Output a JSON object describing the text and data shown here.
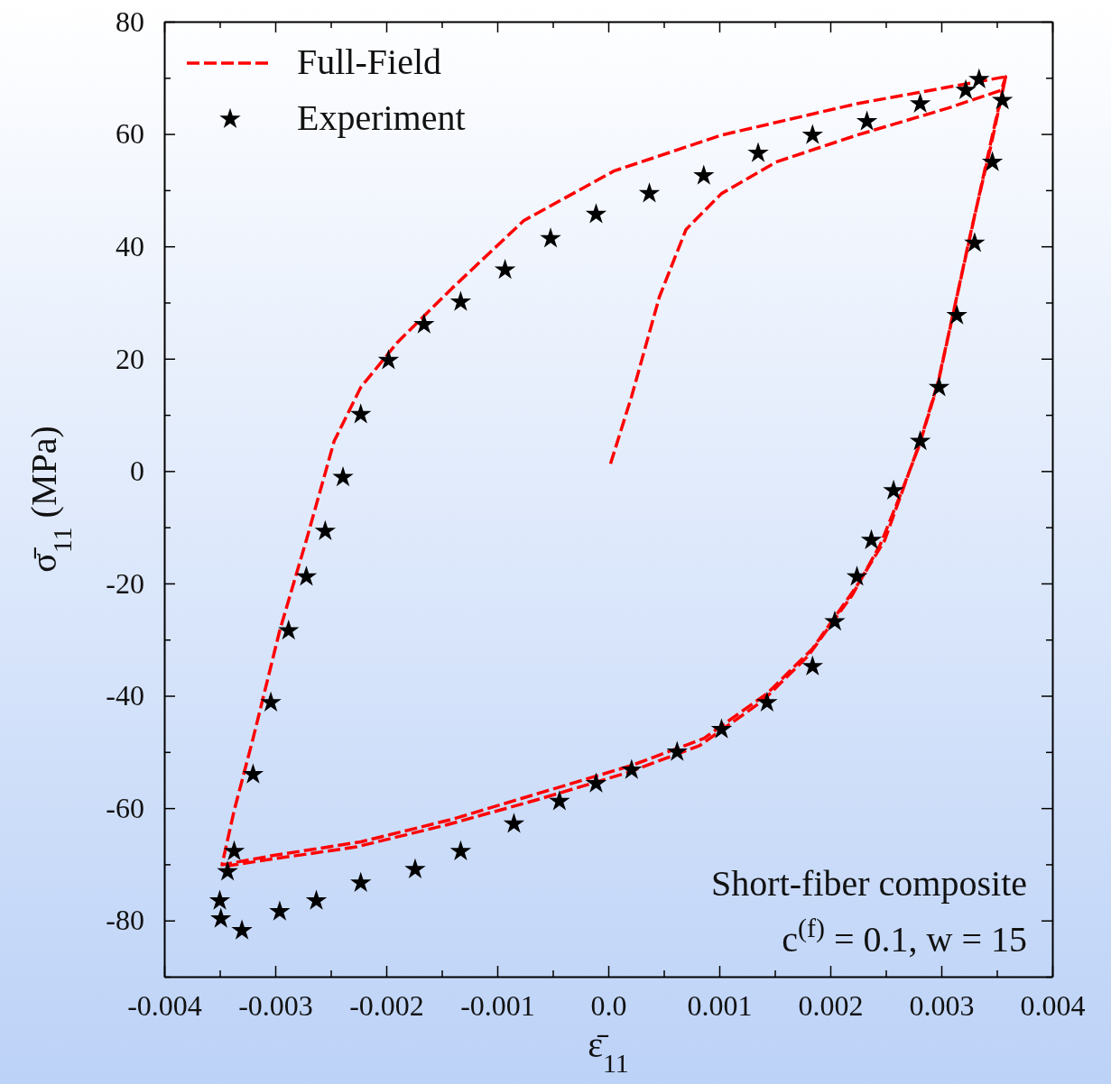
{
  "chart_data": {
    "type": "line",
    "xlabel": "ε̄$_{11}$",
    "ylabel": "σ̄$_{11}$ (MPa)",
    "xlim": [
      -0.004,
      0.004
    ],
    "ylim": [
      -90,
      80
    ],
    "xticks": [
      -0.004,
      {
        "value": -0.0035,
        "label": null
      },
      -0.003,
      {
        "value": -0.0025,
        "label": null
      },
      -0.002,
      {
        "value": -0.0015,
        "label": null
      },
      -0.001,
      {
        "value": -0.0005,
        "label": null
      },
      {
        "value": 0,
        "label": "0.0"
      },
      {
        "value": 0.0005,
        "label": null
      },
      0.001,
      {
        "value": 0.0015,
        "label": null
      },
      0.002,
      {
        "value": 0.0025,
        "label": null
      },
      0.003,
      {
        "value": 0.0035,
        "label": null
      },
      0.004
    ],
    "yticks": [
      {
        "value": -90,
        "label": null
      },
      -80,
      {
        "value": -70,
        "label": null
      },
      -60,
      {
        "value": -50,
        "label": null
      },
      -40,
      {
        "value": -30,
        "label": null
      },
      -20,
      {
        "value": -10,
        "label": null
      },
      0,
      {
        "value": 10,
        "label": null
      },
      20,
      {
        "value": 30,
        "label": null
      },
      40,
      {
        "value": 50,
        "label": null
      },
      60,
      {
        "value": 70,
        "label": null
      },
      80
    ],
    "grid": false,
    "legend": "top left",
    "annotations": [
      "Short-fiber composite",
      "c$^{(f)}$ = 0.1,  w = 15"
    ],
    "series": [
      {
        "name": "Full-Field",
        "color": "#ff0000",
        "line_style": "dashed",
        "marker": "none",
        "x": [
          2e-05,
          0.00021,
          0.00046,
          0.0007,
          0.00102,
          0.00151,
          0.00224,
          0.00306,
          0.00354,
          0.00358,
          0.00346,
          0.0033,
          0.00314,
          0.00298,
          0.00281,
          0.00265,
          0.00249,
          0.00224,
          0.00184,
          0.00143,
          0.00086,
          0.00021,
          -0.0006,
          -0.00141,
          -0.00223,
          -0.00304,
          -0.00348,
          -0.00337,
          -0.0032,
          -0.00296,
          -0.00272,
          -0.00247,
          -0.00223,
          -0.0019,
          -0.00141,
          -0.00076,
          5e-05,
          0.00102,
          0.00224,
          0.00358,
          0.00345,
          0.00328,
          0.00312,
          0.00296,
          0.0028,
          0.00263,
          0.00245,
          0.0022,
          0.0018,
          0.00139,
          0.00082,
          0.00017,
          -0.00064,
          -0.00146,
          -0.00227,
          -0.00304,
          -0.00348
        ],
        "values": [
          1.3,
          13.3,
          31,
          43,
          49.4,
          55,
          59.8,
          64.6,
          67.8,
          70.2,
          59.8,
          45.4,
          31,
          16.5,
          5.3,
          -3.5,
          -12.3,
          -20.4,
          -31.6,
          -39.6,
          -47.6,
          -52.4,
          -57.2,
          -62,
          -66,
          -68.5,
          -70.1,
          -60.4,
          -47.6,
          -28.4,
          -12.3,
          5.3,
          14.9,
          22.9,
          32.5,
          44.6,
          53.4,
          59.8,
          65.4,
          70.2,
          58.2,
          43.8,
          29.3,
          14.9,
          4.5,
          -4.3,
          -13.1,
          -22,
          -32.9,
          -40.9,
          -48.9,
          -53.7,
          -58.5,
          -63,
          -66.9,
          -69.1,
          -70.4
        ]
      },
      {
        "name": "Experiment",
        "type": "scatter",
        "color": "#000000",
        "marker": "star",
        "x": [
          0.00334,
          0.00355,
          0.00346,
          0.0033,
          0.00314,
          0.00298,
          0.00281,
          0.00257,
          0.00237,
          0.00224,
          0.00204,
          0.00184,
          0.00143,
          0.00102,
          0.00062,
          0.00021,
          -0.00011,
          -0.00044,
          -0.00085,
          -0.00133,
          -0.00174,
          -0.00223,
          -0.00263,
          -0.00296,
          -0.0033,
          -0.00349,
          -0.0035,
          -0.00343,
          -0.00337,
          -0.0032,
          -0.00304,
          -0.00288,
          -0.00272,
          -0.00255,
          -0.00239,
          -0.00223,
          -0.00198,
          -0.00166,
          -0.00133,
          -0.00093,
          -0.00052,
          -0.00011,
          0.00037,
          0.00086,
          0.00135,
          0.00184,
          0.00233,
          0.00281,
          0.00322
        ],
        "values": [
          69.7,
          66,
          55,
          40.6,
          27.7,
          14.9,
          5.3,
          -3.5,
          -12.3,
          -18.8,
          -26.8,
          -34.8,
          -41.2,
          -46,
          -50,
          -53.2,
          -55.6,
          -58.8,
          -62.8,
          -67.7,
          -70.9,
          -73.3,
          -76.5,
          -78.4,
          -81.8,
          -79.7,
          -76.5,
          -71.3,
          -67.7,
          -54,
          -41.2,
          -28.4,
          -18.8,
          -10.7,
          -1.1,
          10.1,
          19.7,
          26.1,
          30.1,
          35.8,
          41.4,
          45.7,
          49.4,
          52.6,
          56.6,
          59.8,
          62.2,
          65.4,
          67.8
        ]
      }
    ]
  }
}
